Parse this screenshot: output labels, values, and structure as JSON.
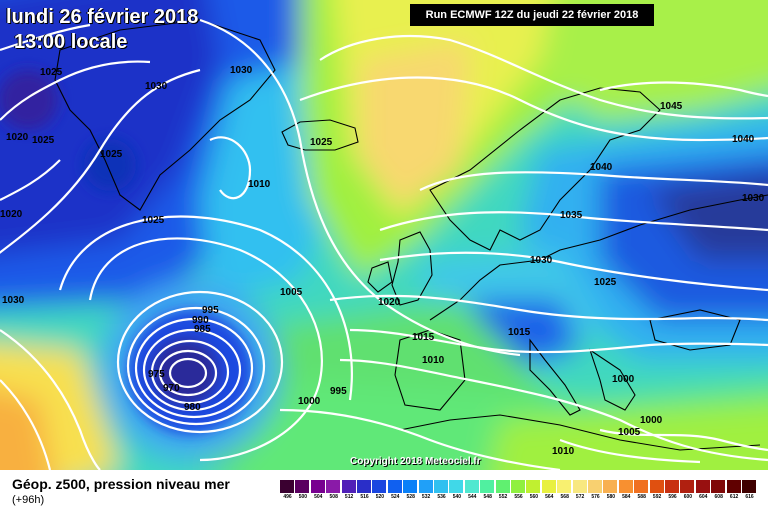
{
  "header": {
    "date_label": "lundi 26 février 2018",
    "time_label": "13:00 locale",
    "run_label": "Run ECMWF 12Z du jeudi 22 février 2018"
  },
  "copyright": "Copyright 2018 Meteociel.fr",
  "footer": {
    "title": "Géop. z500, pression niveau mer",
    "lead_time": "(+96h)"
  },
  "scale": {
    "values": [
      "496",
      "500",
      "504",
      "508",
      "512",
      "516",
      "520",
      "524",
      "528",
      "532",
      "536",
      "540",
      "544",
      "548",
      "552",
      "556",
      "560",
      "564",
      "568",
      "572",
      "576",
      "580",
      "584",
      "588",
      "592",
      "596",
      "600",
      "604",
      "608",
      "612",
      "616"
    ],
    "colors": [
      "#3a0030",
      "#5a0060",
      "#780090",
      "#8a1aa8",
      "#5020b8",
      "#2a2ec8",
      "#1a46e0",
      "#1060f0",
      "#0a80f8",
      "#20a0f8",
      "#30c0f0",
      "#40d8e8",
      "#50e8d0",
      "#50f0a0",
      "#60f070",
      "#90f040",
      "#c0f030",
      "#e8f040",
      "#f8f070",
      "#f8e880",
      "#f8d070",
      "#f8b050",
      "#f89030",
      "#f07020",
      "#e05010",
      "#c83010",
      "#b02010",
      "#981010",
      "#800808",
      "#600000",
      "#400000"
    ]
  },
  "pressure_labels": [
    "1025",
    "1030",
    "1020",
    "1025",
    "1025",
    "1020",
    "1025",
    "1030",
    "1030",
    "1025",
    "1010",
    "1005",
    "995",
    "990",
    "985",
    "975",
    "970",
    "980",
    "995",
    "1000",
    "1020",
    "1015",
    "1010",
    "1045",
    "1040",
    "1040",
    "1030",
    "1035",
    "1030",
    "1025",
    "1015",
    "1000",
    "1000",
    "1005",
    "1010"
  ],
  "map_colors": {
    "ocean_deep_blue": "#1440e0",
    "low_core": "#2a1a6a",
    "high_yellow": "#f8e060",
    "isobar": "#ffffff",
    "coast": "#000000"
  }
}
